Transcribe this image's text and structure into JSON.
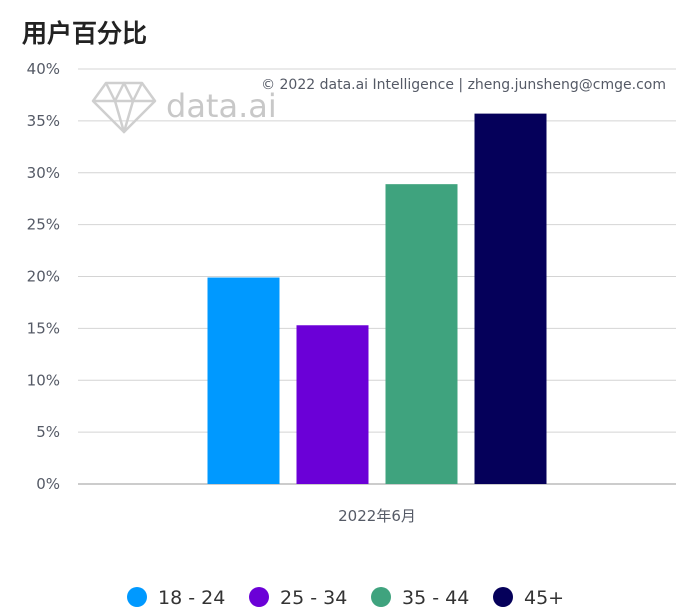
{
  "title": "用户百分比",
  "copyright": "© 2022 data.ai Intelligence | zheng.junsheng@cmge.com",
  "watermark": {
    "text": "data.ai",
    "icon": "diamond-icon"
  },
  "colors": {
    "18 - 24": "#0099ff",
    "25 - 34": "#6b00d7",
    "35 - 44": "#3fa37e",
    "45+": "#05005a"
  },
  "chart_data": {
    "type": "bar",
    "categories": [
      "2022年6月"
    ],
    "series": [
      {
        "name": "18 - 24",
        "values": [
          19.9
        ]
      },
      {
        "name": "25 - 34",
        "values": [
          15.3
        ]
      },
      {
        "name": "35 - 44",
        "values": [
          28.9
        ]
      },
      {
        "name": "45+",
        "values": [
          35.7
        ]
      }
    ],
    "ylim": [
      0,
      40
    ],
    "yticks": [
      "0%",
      "5%",
      "10%",
      "15%",
      "20%",
      "25%",
      "30%",
      "35%",
      "40%"
    ],
    "grid": true,
    "legend": "bottom"
  }
}
